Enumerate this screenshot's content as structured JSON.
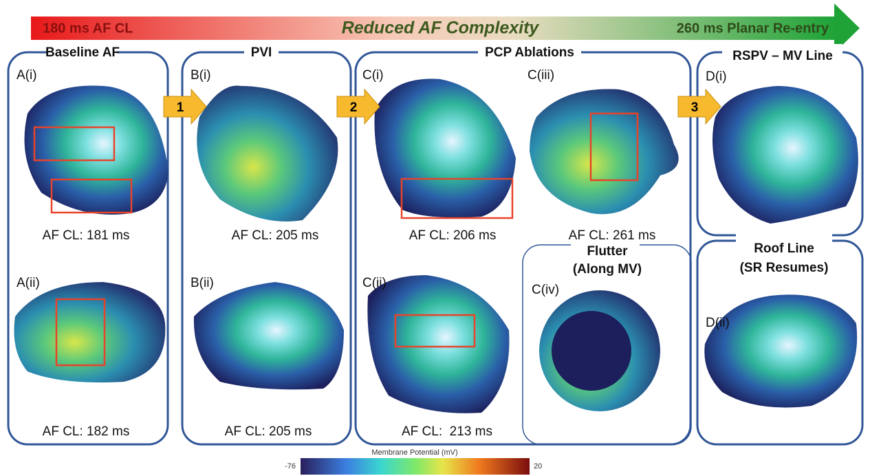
{
  "header": {
    "left": "180 ms AF CL",
    "center": "Reduced AF Complexity",
    "right": "260 ms Planar Re-entry"
  },
  "steps": [
    "1",
    "2",
    "3"
  ],
  "panels": {
    "a": {
      "title": "Baseline AF",
      "top": {
        "label": "A(i)",
        "caption": "AF CL: 181 ms"
      },
      "bottom": {
        "label": "A(ii)",
        "caption": "AF CL: 182 ms"
      }
    },
    "b": {
      "title": "PVI",
      "top": {
        "label": "B(i)",
        "caption": "AF CL: 205 ms"
      },
      "bottom": {
        "label": "B(ii)",
        "caption": "AF CL: 205 ms"
      }
    },
    "c": {
      "title": "PCP Ablations",
      "top": {
        "label": "C(i)",
        "caption": "AF CL: 206 ms"
      },
      "bottom": {
        "label": "C(ii)",
        "caption": "AF CL:  213 ms"
      },
      "right": {
        "label": "C(iii)",
        "caption": "AF CL: 261 ms"
      }
    },
    "c_iv": {
      "title": [
        "Flutter",
        "(Along MV)"
      ],
      "label": "C(iv)"
    },
    "d_top": {
      "title": "RSPV – MV Line",
      "label": "D(i)"
    },
    "d_bottom": {
      "title": [
        "Roof Line",
        "(SR Resumes)"
      ],
      "label": "D(ii)"
    }
  },
  "colorbar": {
    "title": "Membrane Potential (mV)",
    "min": -76,
    "max": 20
  }
}
